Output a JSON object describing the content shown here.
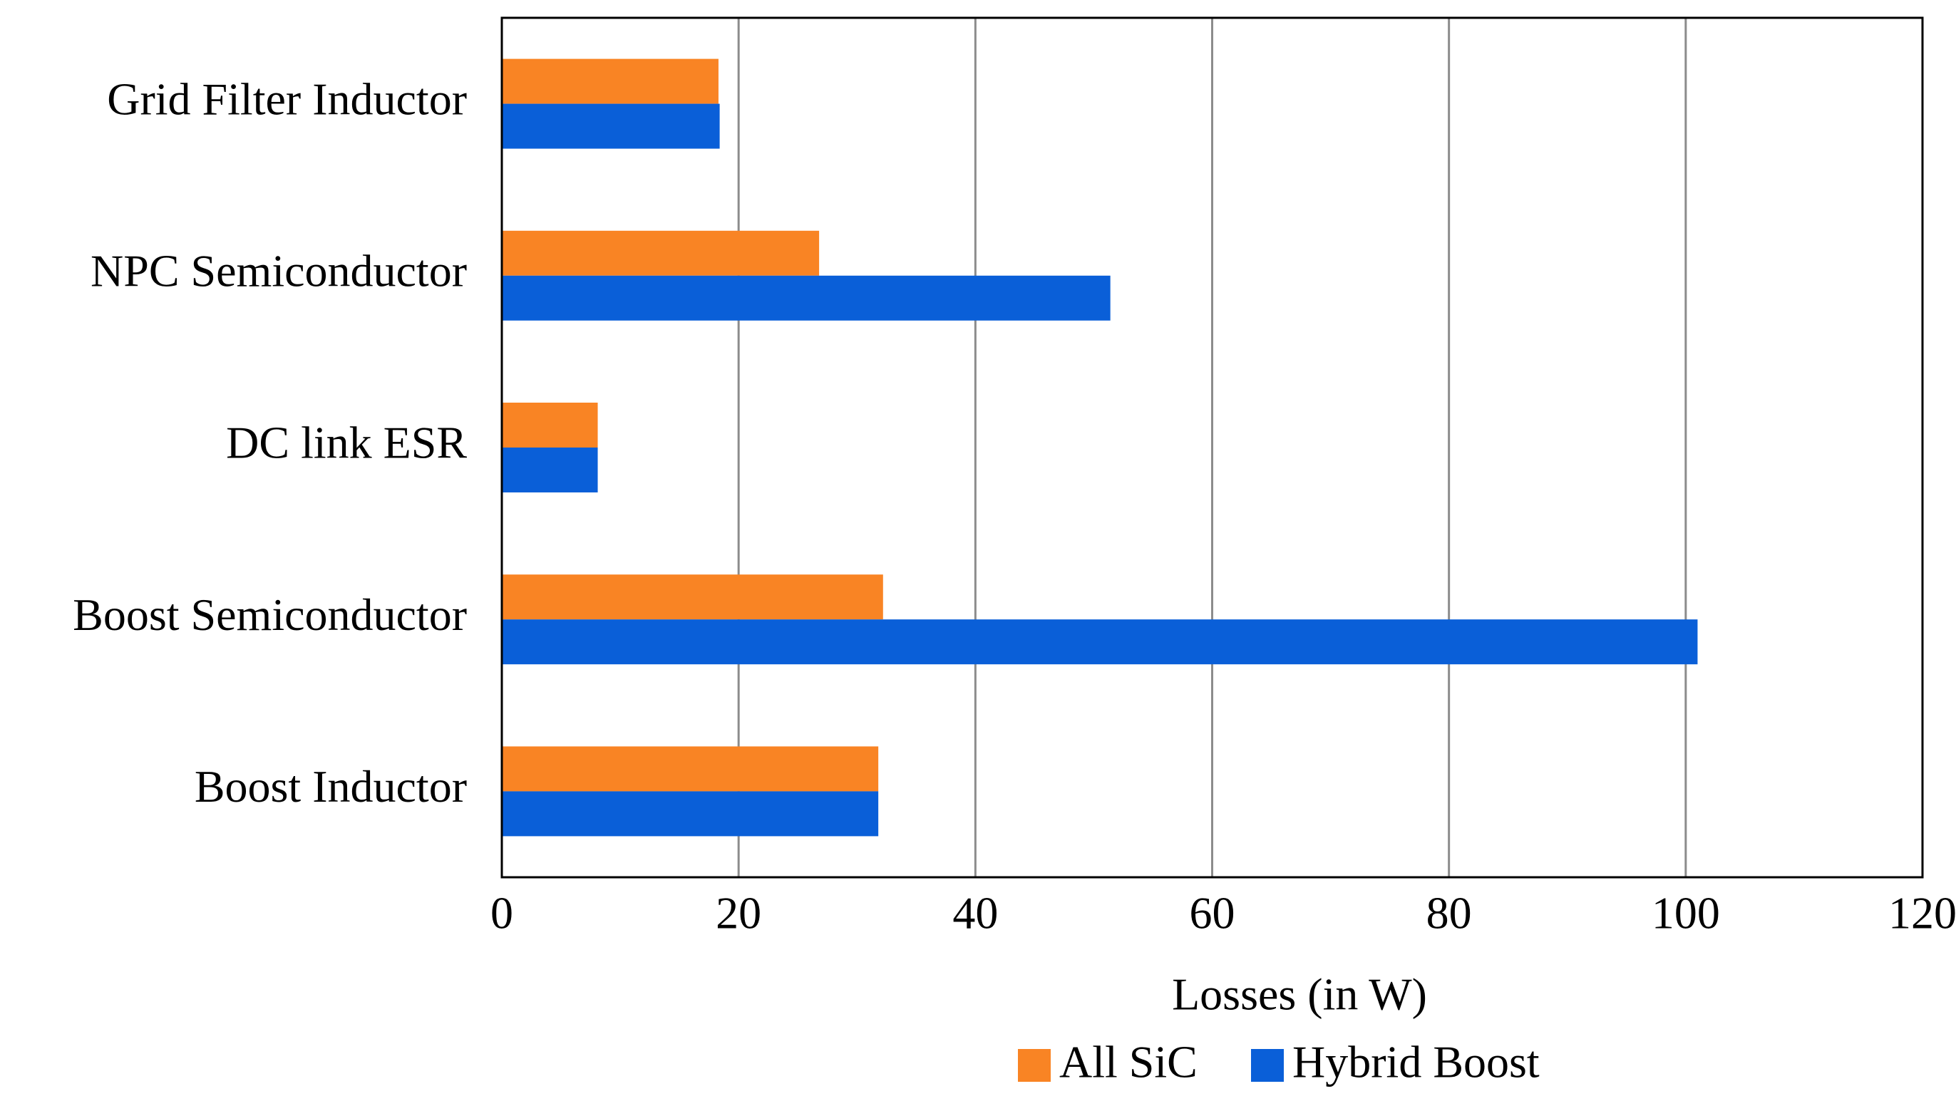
{
  "chart_data": {
    "type": "hbar",
    "x_label": "Losses (in W)",
    "categories": [
      "Boost Inductor",
      "Boost Semiconductor",
      "DC link ESR",
      "NPC Semiconductor",
      "Grid Filter Inductor"
    ],
    "series": [
      {
        "name": "All SiC",
        "color": "#f98424",
        "values": [
          31.8,
          32.2,
          8.1,
          26.8,
          18.3
        ]
      },
      {
        "name": "Hybrid Boost",
        "color": "#0a5fd8",
        "values": [
          31.8,
          101,
          8.1,
          51.4,
          18.4
        ]
      }
    ],
    "xlim": [
      0,
      120
    ],
    "xticks": [
      0,
      20,
      40,
      60,
      80,
      100,
      120
    ],
    "grid": true
  }
}
